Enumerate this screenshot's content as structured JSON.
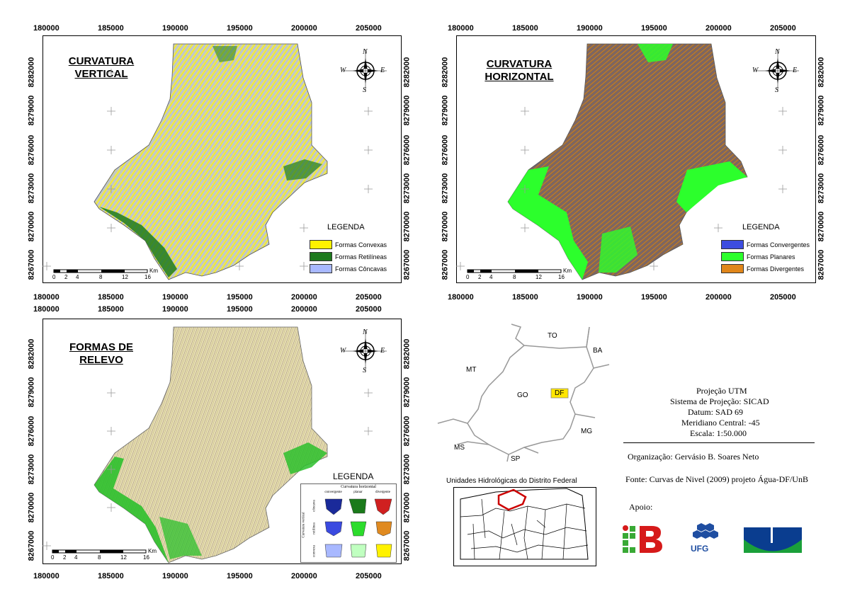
{
  "panels": [
    {
      "title_l1": "CURVATURA",
      "title_l2": "VERTICAL",
      "legend_title": "LEGENDA",
      "legend": [
        {
          "label": "Formas Convexas",
          "color": "#fff200"
        },
        {
          "label": "Formas Retilíneas",
          "color": "#1e7a1e"
        },
        {
          "label": "Formas Côncavas",
          "color": "#a8b8ff"
        }
      ]
    },
    {
      "title_l1": "CURVATURA",
      "title_l2": "HORIZONTAL",
      "legend_title": "LEGENDA",
      "legend": [
        {
          "label": "Formas Convergentes",
          "color": "#3d4de0"
        },
        {
          "label": "Formas Planares",
          "color": "#2cff2c"
        },
        {
          "label": "Formas Divergentes",
          "color": "#e0861a"
        }
      ]
    },
    {
      "title_l1": "FORMAS DE",
      "title_l2": "RELEVO",
      "legend_title": "LEGENDA",
      "matrix_top": "Curvatura horizontal",
      "matrix_side": "Curvatura vertical",
      "cols": [
        "convergente",
        "planar",
        "divergente"
      ],
      "rows": [
        "côncava",
        "retilínea",
        "convexa"
      ]
    }
  ],
  "x_ticks": [
    "180000",
    "185000",
    "190000",
    "195000",
    "200000",
    "205000"
  ],
  "y_ticks": [
    "8282000",
    "8279000",
    "8276000",
    "8273000",
    "8270000",
    "8267000"
  ],
  "scale": {
    "labels": [
      "0",
      "2",
      "4",
      "8",
      "12",
      "16"
    ],
    "unit": "Km"
  },
  "compass": {
    "n": "N",
    "s": "S",
    "e": "E",
    "w": "W"
  },
  "locator": {
    "states": [
      "TO",
      "BA",
      "MT",
      "GO",
      "DF",
      "MG",
      "MS",
      "SP"
    ]
  },
  "hydro_title": "Unidades Hidrológicas do Distrito Federal",
  "info": {
    "l1": "Projeção UTM",
    "l2": "Sistema de Projeção: SICAD",
    "l3": "Datum: SAD 69",
    "l4": "Meridiano Central: -45",
    "l5": "Escala: 1:50.000",
    "org": "Organização: Gervásio B. Soares Neto",
    "fonte": "Fonte: Curvas de Nivel (2009) projeto Água-DF/UnB",
    "apoio": "Apoio:"
  },
  "logos": {
    "ufg": "UFG"
  },
  "colors": {
    "yellow": "#fff200",
    "dkgreen": "#1e7a1e",
    "grayblue": "#a8b8ff",
    "brown": "#8a6a4a",
    "bright": "#2cff2c",
    "beige": "#e6dcb4"
  }
}
